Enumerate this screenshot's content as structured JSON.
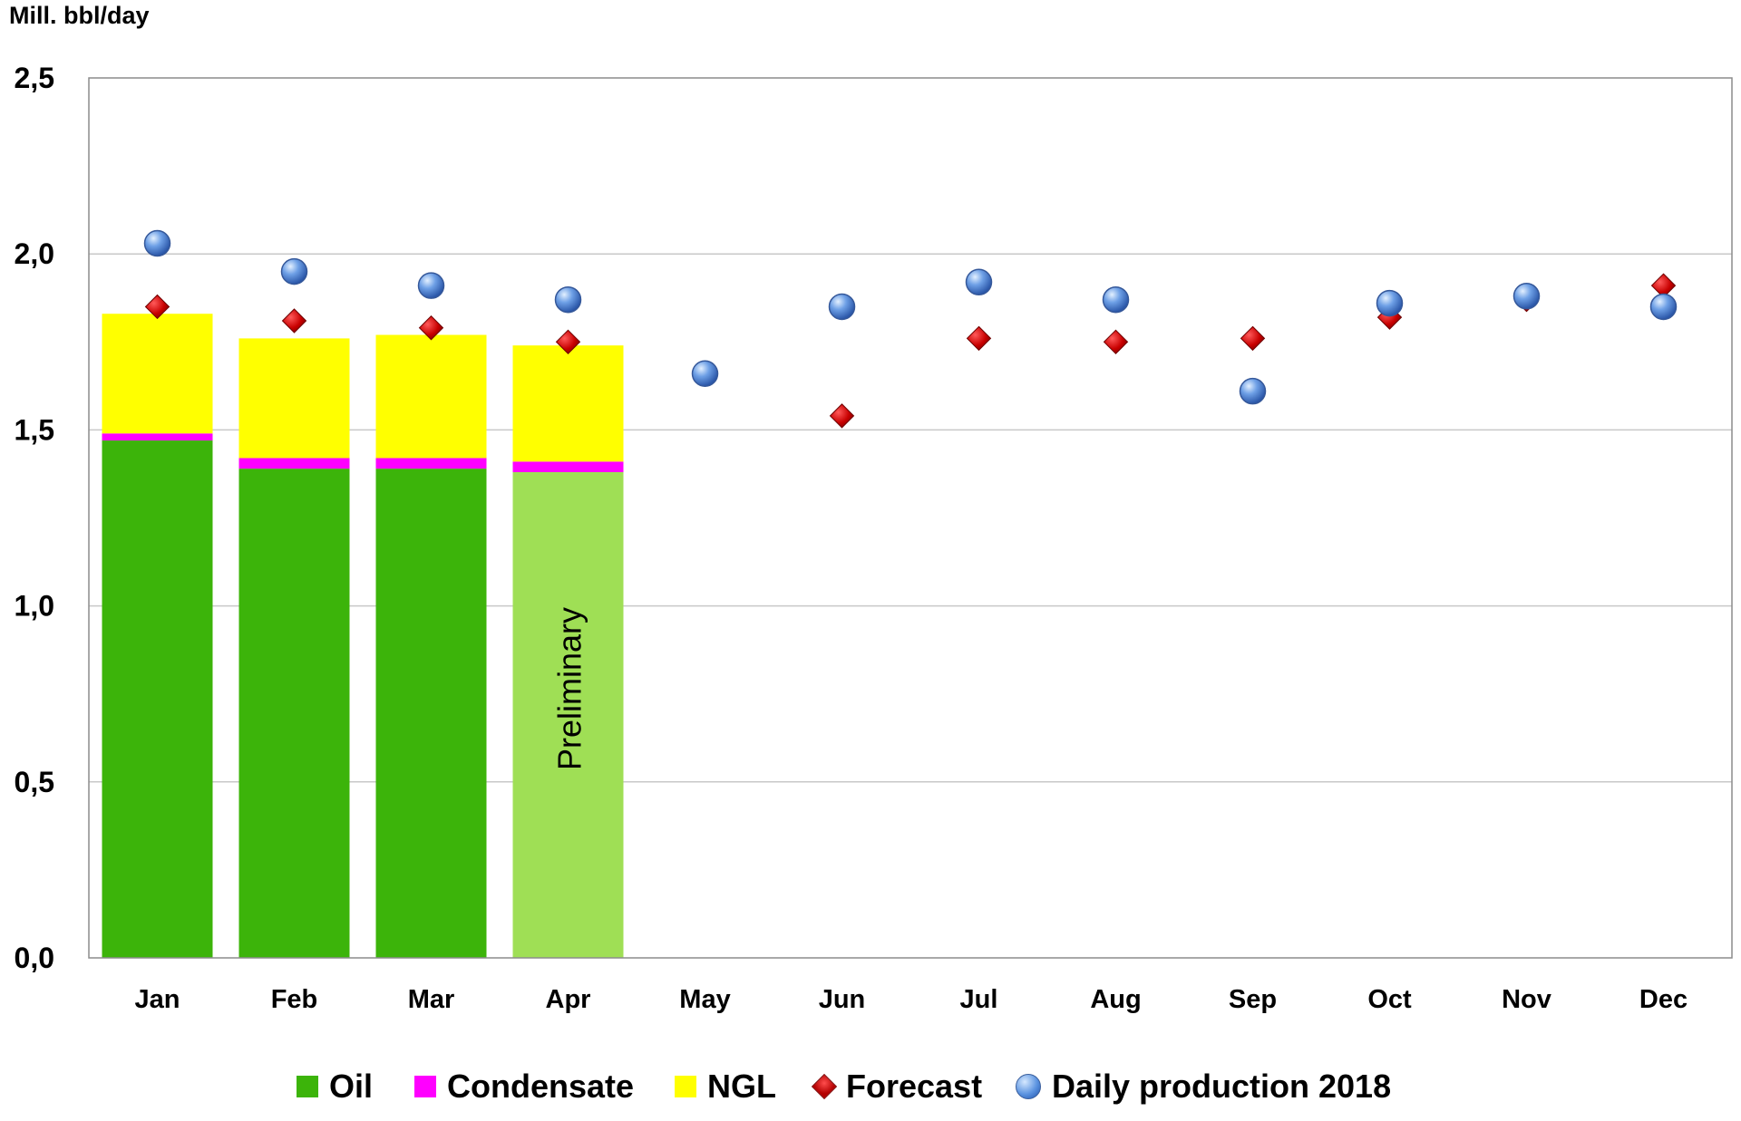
{
  "chart_data": {
    "type": "bar",
    "ylabel": "Mill. bbl/day",
    "ylim": [
      0,
      2.5
    ],
    "yticks": [
      "0,0",
      "0,5",
      "1,0",
      "1,5",
      "2,0",
      "2,5"
    ],
    "ytick_values": [
      0,
      0.5,
      1.0,
      1.5,
      2.0,
      2.5
    ],
    "grid": true,
    "legend_position": "bottom",
    "categories": [
      "Jan",
      "Feb",
      "Mar",
      "Apr",
      "May",
      "Jun",
      "Jul",
      "Aug",
      "Sep",
      "Oct",
      "Nov",
      "Dec"
    ],
    "stacked_series": [
      {
        "name": "Oil",
        "color": "#3cb40a",
        "values": [
          1.47,
          1.39,
          1.39,
          1.38
        ]
      },
      {
        "name": "Condensate",
        "color": "#ff00ff",
        "values": [
          0.02,
          0.03,
          0.03,
          0.03
        ]
      },
      {
        "name": "NGL",
        "color": "#ffff00",
        "values": [
          0.34,
          0.34,
          0.35,
          0.33
        ]
      }
    ],
    "preliminary": {
      "month": "Apr",
      "label": "Preliminary",
      "oil_color": "#9fdf55"
    },
    "markers": [
      {
        "name": "Forecast",
        "shape": "diamond",
        "color": "#cc0000",
        "values": [
          1.85,
          1.81,
          1.79,
          1.75,
          null,
          1.54,
          1.76,
          1.75,
          1.76,
          1.82,
          1.87,
          1.91
        ]
      },
      {
        "name": "Daily production 2018",
        "shape": "circle",
        "color": "#5b93e0",
        "values": [
          2.03,
          1.95,
          1.91,
          1.87,
          1.66,
          1.85,
          1.92,
          1.87,
          1.61,
          1.86,
          1.88,
          1.85
        ]
      }
    ]
  },
  "legend": [
    {
      "label": "Oil",
      "kind": "swatch",
      "color": "#3cb40a"
    },
    {
      "label": "Condensate",
      "kind": "swatch",
      "color": "#ff00ff"
    },
    {
      "label": "NGL",
      "kind": "swatch",
      "color": "#ffff00"
    },
    {
      "label": "Forecast",
      "kind": "diamond",
      "color": "#cc0000"
    },
    {
      "label": "Daily production 2018",
      "kind": "circle",
      "color": "#5b93e0"
    }
  ]
}
